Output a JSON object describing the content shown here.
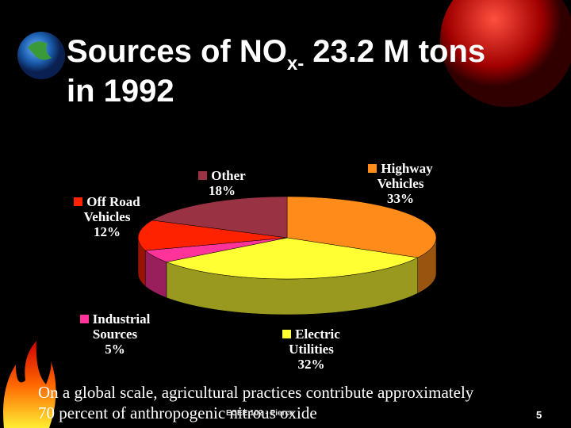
{
  "slide": {
    "title": {
      "main": "Sources of NO",
      "subscript": "x-",
      "rest": " 23.2 M tons in 1992"
    },
    "note": "On a global scale, agricultural practices contribute approximately 70 percent of anthropogenic nitrous oxide",
    "footer": "ECEE 102 - Pierce",
    "page_number": "5"
  },
  "chart_data": {
    "type": "pie",
    "categories": [
      "Highway Vehicles",
      "Electric Utilities",
      "Industrial Sources",
      "Off Road Vehicles",
      "Other"
    ],
    "values": [
      33,
      32,
      5,
      12,
      18
    ],
    "value_labels": [
      "33%",
      "32%",
      "5%",
      "12%",
      "18%"
    ],
    "colors": [
      "#ff8c1a",
      "#ffff33",
      "#ff3399",
      "#ff2200",
      "#993344"
    ]
  }
}
